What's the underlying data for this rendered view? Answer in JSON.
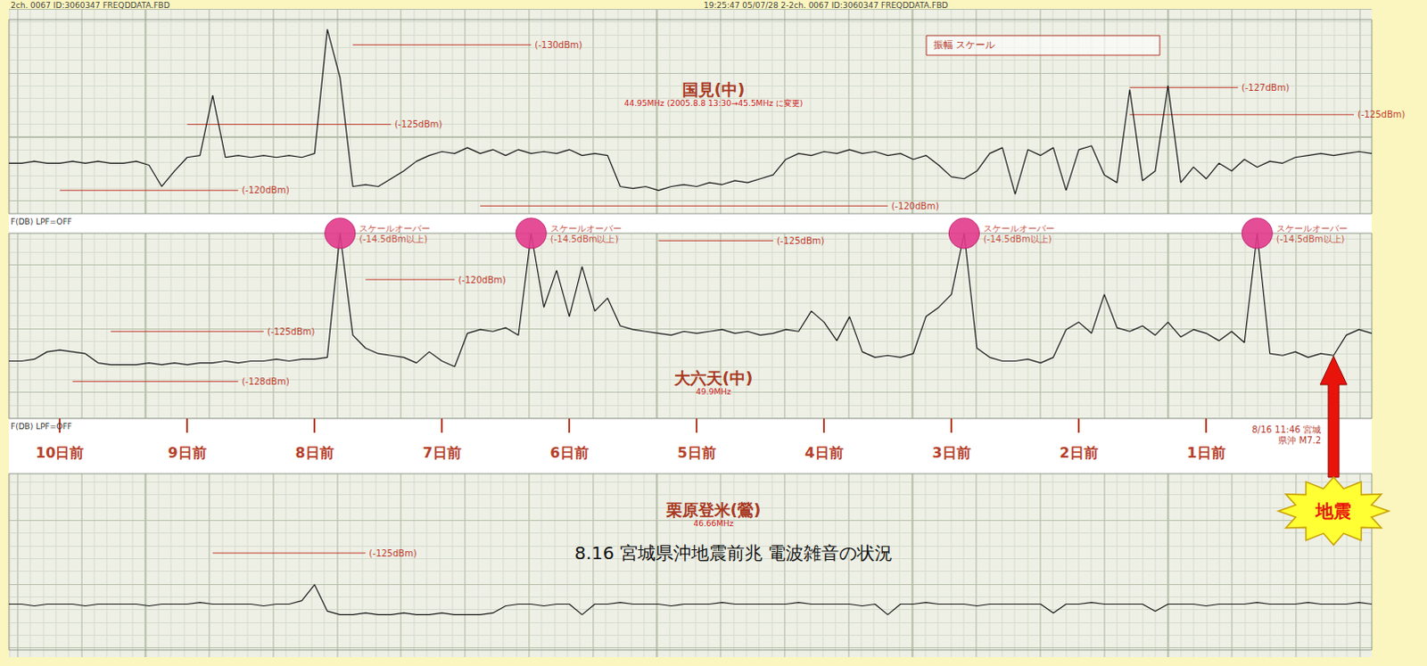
{
  "title": "8.16 宮城県沖地震前兆 電波雑音の状況",
  "header": {
    "left": "2ch. 0067 ID:3060347 FREQDDATA.FBD",
    "right": "19:25:47 05/07/28 2-2ch. 0067 ID:3060347 FREQDDATA.FBD",
    "box": "振幅 スケール"
  },
  "event": {
    "label": "地震",
    "x": 0,
    "note": "8/16 11:46 宮城県沖 M7.2"
  },
  "chart_data": [
    {
      "type": "line",
      "title": "国見(中)",
      "subtitle": "44.95MHz (2005.8.8 13:30→45.5MHz に変更)",
      "channel": "F(DB) LPF=OFF",
      "color": "#1a1a1a",
      "grid": true,
      "tick_labels": false,
      "xlim": [
        -10.4,
        0.3
      ],
      "ylim": [
        0,
        100
      ],
      "x": [
        -10.4,
        -10.3,
        -10.2,
        -10.1,
        -10.0,
        -9.9,
        -9.8,
        -9.7,
        -9.6,
        -9.5,
        -9.4,
        -9.3,
        -9.2,
        -9.1,
        -9.0,
        -8.9,
        -8.8,
        -8.7,
        -8.6,
        -8.5,
        -8.4,
        -8.3,
        -8.2,
        -8.1,
        -8.0,
        -7.9,
        -7.8,
        -7.7,
        -7.6,
        -7.5,
        -7.4,
        -7.3,
        -7.2,
        -7.1,
        -7.0,
        -6.9,
        -6.8,
        -6.7,
        -6.6,
        -6.5,
        -6.4,
        -6.3,
        -6.2,
        -6.1,
        -6.0,
        -5.9,
        -5.8,
        -5.7,
        -5.6,
        -5.5,
        -5.4,
        -5.3,
        -5.2,
        -5.1,
        -5.0,
        -4.9,
        -4.8,
        -4.7,
        -4.6,
        -4.5,
        -4.4,
        -4.3,
        -4.2,
        -4.1,
        -4.0,
        -3.9,
        -3.8,
        -3.7,
        -3.6,
        -3.5,
        -3.4,
        -3.3,
        -3.2,
        -3.1,
        -3.0,
        -2.9,
        -2.8,
        -2.7,
        -2.6,
        -2.5,
        -2.4,
        -2.3,
        -2.2,
        -2.1,
        -2.0,
        -1.9,
        -1.8,
        -1.7,
        -1.6,
        -1.5,
        -1.4,
        -1.3,
        -1.2,
        -1.1,
        -1.0,
        -0.9,
        -0.8,
        -0.7,
        -0.6,
        -0.5,
        -0.4,
        -0.3,
        -0.2,
        -0.1,
        0.0,
        0.1,
        0.2,
        0.3
      ],
      "values": [
        26,
        26,
        27,
        26,
        26,
        27,
        26,
        27,
        26,
        26,
        27,
        25,
        14,
        22,
        29,
        30,
        61,
        29,
        30,
        29,
        30,
        29,
        30,
        29,
        31,
        95,
        70,
        14,
        15,
        14,
        18,
        22,
        27,
        30,
        32,
        31,
        34,
        31,
        33,
        30,
        33,
        31,
        32,
        31,
        33,
        30,
        31,
        30,
        14,
        13,
        14,
        12,
        14,
        15,
        14,
        16,
        15,
        17,
        16,
        18,
        20,
        28,
        31,
        30,
        32,
        31,
        33,
        31,
        32,
        30,
        31,
        28,
        30,
        25,
        19,
        18,
        22,
        31,
        34,
        10,
        33,
        30,
        34,
        12,
        33,
        35,
        20,
        16,
        64,
        17,
        22,
        66,
        16,
        24,
        18,
        26,
        22,
        28,
        24,
        27,
        26,
        29,
        30,
        31,
        30,
        31,
        32,
        31
      ],
      "annotations": [
        {
          "text": "(-130dBm)",
          "x": [
            -7.7,
            -6.3
          ],
          "y": 87,
          "color": "#c0392b"
        },
        {
          "text": "(-125dBm)",
          "x": [
            -9.0,
            -7.4
          ],
          "y": 46,
          "color": "#c0392b"
        },
        {
          "text": "(-120dBm)",
          "x": [
            -10.0,
            -8.6
          ],
          "y": 12,
          "color": "#c0392b"
        },
        {
          "text": "(-120dBm)",
          "x": [
            -6.7,
            -3.5
          ],
          "y": 4,
          "color": "#c0392b"
        },
        {
          "text": "(-127dBm)",
          "x": [
            -1.6,
            -0.75
          ],
          "y": 65,
          "color": "#c0392b"
        },
        {
          "text": "(-125dBm)",
          "x": [
            -1.6,
            0.16
          ],
          "y": 51,
          "color": "#c0392b"
        }
      ]
    },
    {
      "type": "line",
      "title": "大六天(中)",
      "subtitle": "49.9MHz",
      "channel": "F(DB) LPF=OFF",
      "color": "#1a1a1a",
      "grid": true,
      "tick_labels": "x",
      "xlim": [
        -10.4,
        0.3
      ],
      "ylim": [
        0,
        100
      ],
      "xticks": [
        {
          "value": -10,
          "label": "10日前"
        },
        {
          "value": -9,
          "label": "9日前"
        },
        {
          "value": -8,
          "label": "8日前"
        },
        {
          "value": -7,
          "label": "7日前"
        },
        {
          "value": -6,
          "label": "6日前"
        },
        {
          "value": -5,
          "label": "5日前"
        },
        {
          "value": -4,
          "label": "4日前"
        },
        {
          "value": -3,
          "label": "3日前"
        },
        {
          "value": -2,
          "label": "2日前"
        },
        {
          "value": -1,
          "label": "1日前"
        }
      ],
      "x": [
        -10.4,
        -10.3,
        -10.2,
        -10.1,
        -10.0,
        -9.9,
        -9.8,
        -9.7,
        -9.6,
        -9.5,
        -9.4,
        -9.3,
        -9.2,
        -9.1,
        -9.0,
        -8.9,
        -8.8,
        -8.7,
        -8.6,
        -8.5,
        -8.4,
        -8.3,
        -8.2,
        -8.1,
        -8.0,
        -7.9,
        -7.8,
        -7.7,
        -7.6,
        -7.5,
        -7.4,
        -7.3,
        -7.2,
        -7.1,
        -7.0,
        -6.9,
        -6.8,
        -6.7,
        -6.6,
        -6.5,
        -6.4,
        -6.3,
        -6.2,
        -6.1,
        -6.0,
        -5.9,
        -5.8,
        -5.7,
        -5.6,
        -5.5,
        -5.4,
        -5.3,
        -5.2,
        -5.1,
        -5.0,
        -4.9,
        -4.8,
        -4.7,
        -4.6,
        -4.5,
        -4.4,
        -4.3,
        -4.2,
        -4.1,
        -4.0,
        -3.9,
        -3.8,
        -3.7,
        -3.6,
        -3.5,
        -3.4,
        -3.3,
        -3.2,
        -3.1,
        -3.0,
        -2.9,
        -2.8,
        -2.7,
        -2.6,
        -2.5,
        -2.4,
        -2.3,
        -2.2,
        -2.1,
        -2.0,
        -1.9,
        -1.8,
        -1.7,
        -1.6,
        -1.5,
        -1.4,
        -1.3,
        -1.2,
        -1.1,
        -1.0,
        -0.9,
        -0.8,
        -0.7,
        -0.6,
        -0.5,
        -0.4,
        -0.3,
        -0.2,
        -0.1,
        0.0,
        0.1,
        0.2,
        0.3
      ],
      "values": [
        31,
        31,
        32,
        36,
        37,
        36,
        35,
        30,
        29,
        29,
        29,
        30,
        29,
        30,
        29,
        30,
        30,
        31,
        30,
        31,
        31,
        32,
        31,
        32,
        32,
        33,
        100,
        45,
        38,
        35,
        34,
        33,
        30,
        36,
        31,
        28,
        46,
        48,
        47,
        49,
        45,
        100,
        60,
        80,
        55,
        82,
        58,
        65,
        50,
        48,
        47,
        46,
        45,
        47,
        46,
        47,
        48,
        46,
        47,
        45,
        46,
        48,
        47,
        58,
        52,
        42,
        55,
        36,
        33,
        34,
        33,
        35,
        55,
        60,
        67,
        100,
        38,
        33,
        31,
        31,
        32,
        30,
        33,
        48,
        52,
        46,
        67,
        49,
        47,
        50,
        45,
        52,
        44,
        48,
        46,
        42,
        47,
        41,
        100,
        35,
        34,
        36,
        33,
        35,
        34,
        45,
        48,
        46
      ],
      "scale_over": [
        {
          "x": -7.8,
          "label": "スケールオーバー",
          "note": "(-14.5dBm以上)"
        },
        {
          "x": -6.3,
          "label": "スケールオーバー",
          "note": "(-14.5dBm以上)"
        },
        {
          "x": -2.9,
          "label": "スケールオーバー",
          "note": "(-14.5dBm以上)"
        },
        {
          "x": -0.6,
          "label": "スケールオーバー",
          "note": "(-14.5dBm以上)"
        }
      ],
      "annotations": [
        {
          "text": "(-125dBm)",
          "x": [
            -9.6,
            -8.4
          ],
          "y": 47,
          "color": "#c0392b"
        },
        {
          "text": "(-128dBm)",
          "x": [
            -9.9,
            -8.6
          ],
          "y": 20,
          "color": "#c0392b"
        },
        {
          "text": "(-120dBm)",
          "x": [
            -7.6,
            -6.9
          ],
          "y": 75,
          "color": "#c0392b"
        },
        {
          "text": "(-125dBm)",
          "x": [
            -5.3,
            -4.4
          ],
          "y": 96,
          "color": "#c0392b"
        }
      ]
    },
    {
      "type": "line",
      "title": "栗原登米(鶯)",
      "subtitle": "46.66MHz",
      "color": "#1a1a1a",
      "grid": true,
      "tick_labels": false,
      "xlim": [
        -10.4,
        0.3
      ],
      "ylim": [
        0,
        100
      ],
      "x": [
        -10.4,
        -10.3,
        -10.2,
        -10.1,
        -10.0,
        -9.9,
        -9.8,
        -9.7,
        -9.6,
        -9.5,
        -9.4,
        -9.3,
        -9.2,
        -9.1,
        -9.0,
        -8.9,
        -8.8,
        -8.7,
        -8.6,
        -8.5,
        -8.4,
        -8.3,
        -8.2,
        -8.1,
        -8.0,
        -7.9,
        -7.8,
        -7.7,
        -7.6,
        -7.5,
        -7.4,
        -7.3,
        -7.2,
        -7.1,
        -7.0,
        -6.9,
        -6.8,
        -6.7,
        -6.6,
        -6.5,
        -6.4,
        -6.3,
        -6.2,
        -6.1,
        -6.0,
        -5.9,
        -5.8,
        -5.7,
        -5.6,
        -5.5,
        -5.4,
        -5.3,
        -5.2,
        -5.1,
        -5.0,
        -4.9,
        -4.8,
        -4.7,
        -4.6,
        -4.5,
        -4.4,
        -4.3,
        -4.2,
        -4.1,
        -4.0,
        -3.9,
        -3.8,
        -3.7,
        -3.6,
        -3.5,
        -3.4,
        -3.3,
        -3.2,
        -3.1,
        -3.0,
        -2.9,
        -2.8,
        -2.7,
        -2.6,
        -2.5,
        -2.4,
        -2.3,
        -2.2,
        -2.1,
        -2.0,
        -1.9,
        -1.8,
        -1.7,
        -1.6,
        -1.5,
        -1.4,
        -1.3,
        -1.2,
        -1.1,
        -1.0,
        -0.9,
        -0.8,
        -0.7,
        -0.6,
        -0.5,
        -0.4,
        -0.3,
        -0.2,
        -0.1,
        0.0,
        0.1,
        0.2,
        0.3
      ],
      "values": [
        26,
        26,
        25,
        26,
        26,
        26,
        25,
        26,
        26,
        26,
        26,
        25,
        26,
        26,
        26,
        27,
        26,
        26,
        26,
        26,
        25,
        26,
        26,
        28,
        37,
        22,
        20,
        20,
        21,
        20,
        20,
        21,
        20,
        20,
        21,
        20,
        20,
        20,
        21,
        25,
        26,
        26,
        25,
        26,
        26,
        20,
        26,
        26,
        27,
        26,
        26,
        26,
        25,
        26,
        26,
        26,
        27,
        26,
        26,
        26,
        26,
        26,
        27,
        26,
        26,
        26,
        26,
        25,
        26,
        20,
        26,
        26,
        27,
        26,
        26,
        26,
        25,
        26,
        26,
        26,
        26,
        26,
        21,
        26,
        26,
        27,
        26,
        26,
        26,
        26,
        22,
        26,
        26,
        26,
        25,
        26,
        26,
        26,
        27,
        26,
        26,
        26,
        27,
        26,
        26,
        26,
        27,
        26
      ],
      "annotations": [
        {
          "text": "(-125dBm)",
          "x": [
            -8.8,
            -7.6
          ],
          "y": 55,
          "color": "#c0392b"
        }
      ]
    }
  ]
}
